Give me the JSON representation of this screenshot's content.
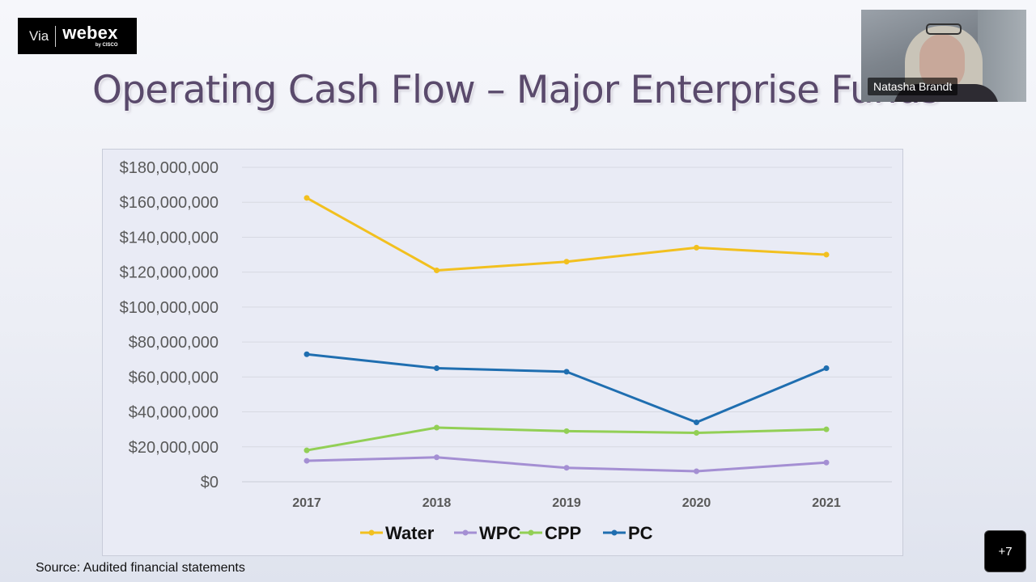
{
  "logo": {
    "via": "Via",
    "brand": "webex",
    "sub": "by CISCO"
  },
  "slide": {
    "title": "Operating Cash Flow – Major Enterprise Funds",
    "source": "Source: Audited financial statements"
  },
  "participant": {
    "name": "Natasha Brandt"
  },
  "participants_more": {
    "label": "+7"
  },
  "chart_data": {
    "type": "line",
    "categories": [
      "2017",
      "2018",
      "2019",
      "2020",
      "2021"
    ],
    "y_ticks": [
      "$0",
      "$20,000,000",
      "$40,000,000",
      "$60,000,000",
      "$80,000,000",
      "$100,000,000",
      "$120,000,000",
      "$140,000,000",
      "$160,000,000",
      "$180,000,000"
    ],
    "ylim": [
      0,
      180000000
    ],
    "grid": true,
    "legend": "bottom",
    "series": [
      {
        "name": "Water",
        "color": "#f2c01f",
        "values": [
          162500000,
          121000000,
          126000000,
          134000000,
          130000000
        ]
      },
      {
        "name": "WPC",
        "color": "#a48fd3",
        "values": [
          12000000,
          14000000,
          8000000,
          6000000,
          11000000
        ]
      },
      {
        "name": "CPP",
        "color": "#92cf55",
        "values": [
          18000000,
          31000000,
          29000000,
          28000000,
          30000000
        ]
      },
      {
        "name": "PC",
        "color": "#1f6eb0",
        "values": [
          73000000,
          65000000,
          63000000,
          34000000,
          65000000
        ]
      }
    ]
  }
}
